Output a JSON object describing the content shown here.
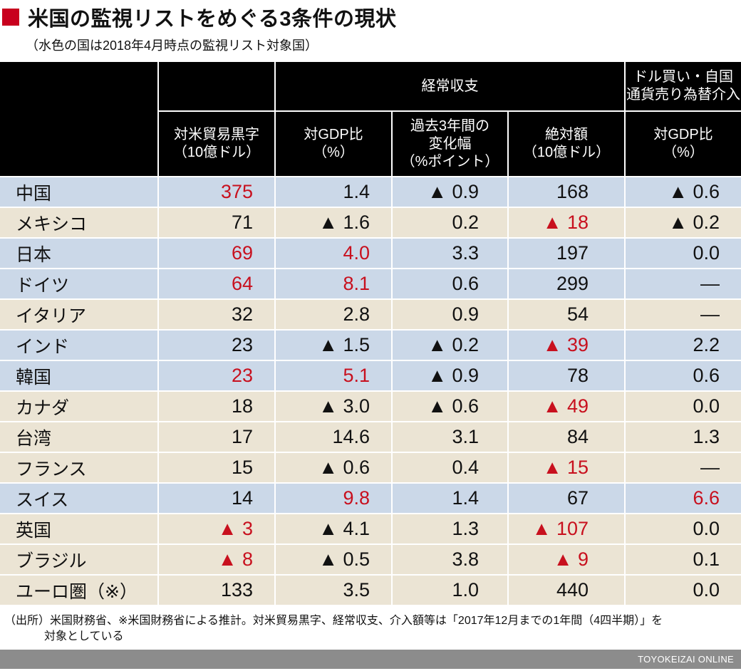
{
  "title": "米国の監視リストをめぐる3条件の現状",
  "subtitle": "（水色の国は2018年4月時点の監視リスト対象国）",
  "colors": {
    "accent": "#c8001e",
    "highlight_row": "#cbd8e8",
    "normal_row": "#ebe4d4",
    "red_value": "#c8101e",
    "header_bg": "#000000"
  },
  "header": {
    "group_current_account": "経常収支",
    "group_intervention_line1": "ドル買い・自国",
    "group_intervention_line2": "通貨売り為替介入",
    "col1_line1": "対米貿易黒字",
    "col1_line2": "（10億ドル）",
    "col2_line1": "対GDP比",
    "col2_line2": "（%）",
    "col3_line1": "過去3年間の",
    "col3_line2": "変化幅",
    "col3_line3": "（%ポイント）",
    "col4_line1": "絶対額",
    "col4_line2": "（10億ドル）",
    "col5_line1": "対GDP比",
    "col5_line2": "（%）"
  },
  "rows": [
    {
      "country": "中国",
      "watch": true,
      "trade": "375",
      "trade_red": true,
      "ca_gdp": "1.4",
      "ca_gdp_red": false,
      "ca_change": "▲ 0.9",
      "ca_abs": "168",
      "ca_abs_red": false,
      "fx": "▲ 0.6",
      "fx_red": false
    },
    {
      "country": "メキシコ",
      "watch": false,
      "trade": "71",
      "trade_red": false,
      "ca_gdp": "▲ 1.6",
      "ca_gdp_red": false,
      "ca_change": "0.2",
      "ca_abs": "▲ 18",
      "ca_abs_red": true,
      "fx": "▲ 0.2",
      "fx_red": false
    },
    {
      "country": "日本",
      "watch": true,
      "trade": "69",
      "trade_red": true,
      "ca_gdp": "4.0",
      "ca_gdp_red": true,
      "ca_change": "3.3",
      "ca_abs": "197",
      "ca_abs_red": false,
      "fx": "0.0",
      "fx_red": false
    },
    {
      "country": "ドイツ",
      "watch": true,
      "trade": "64",
      "trade_red": true,
      "ca_gdp": "8.1",
      "ca_gdp_red": true,
      "ca_change": "0.6",
      "ca_abs": "299",
      "ca_abs_red": false,
      "fx": "—",
      "fx_red": false
    },
    {
      "country": "イタリア",
      "watch": false,
      "trade": "32",
      "trade_red": false,
      "ca_gdp": "2.8",
      "ca_gdp_red": false,
      "ca_change": "0.9",
      "ca_abs": "54",
      "ca_abs_red": false,
      "fx": "—",
      "fx_red": false
    },
    {
      "country": "インド",
      "watch": true,
      "trade": "23",
      "trade_red": false,
      "ca_gdp": "▲ 1.5",
      "ca_gdp_red": false,
      "ca_change": "▲ 0.2",
      "ca_abs": "▲ 39",
      "ca_abs_red": true,
      "fx": "2.2",
      "fx_red": false
    },
    {
      "country": "韓国",
      "watch": true,
      "trade": "23",
      "trade_red": true,
      "ca_gdp": "5.1",
      "ca_gdp_red": true,
      "ca_change": "▲ 0.9",
      "ca_abs": "78",
      "ca_abs_red": false,
      "fx": "0.6",
      "fx_red": false
    },
    {
      "country": "カナダ",
      "watch": false,
      "trade": "18",
      "trade_red": false,
      "ca_gdp": "▲ 3.0",
      "ca_gdp_red": false,
      "ca_change": "▲ 0.6",
      "ca_abs": "▲ 49",
      "ca_abs_red": true,
      "fx": "0.0",
      "fx_red": false
    },
    {
      "country": "台湾",
      "watch": false,
      "trade": "17",
      "trade_red": false,
      "ca_gdp": "14.6",
      "ca_gdp_red": false,
      "ca_change": "3.1",
      "ca_abs": "84",
      "ca_abs_red": false,
      "fx": "1.3",
      "fx_red": false
    },
    {
      "country": "フランス",
      "watch": false,
      "trade": "15",
      "trade_red": false,
      "ca_gdp": "▲ 0.6",
      "ca_gdp_red": false,
      "ca_change": "0.4",
      "ca_abs": "▲ 15",
      "ca_abs_red": true,
      "fx": "—",
      "fx_red": false
    },
    {
      "country": "スイス",
      "watch": true,
      "trade": "14",
      "trade_red": false,
      "ca_gdp": "9.8",
      "ca_gdp_red": true,
      "ca_change": "1.4",
      "ca_abs": "67",
      "ca_abs_red": false,
      "fx": "6.6",
      "fx_red": true
    },
    {
      "country": "英国",
      "watch": false,
      "trade": "▲ 3",
      "trade_red": true,
      "ca_gdp": "▲ 4.1",
      "ca_gdp_red": false,
      "ca_change": "1.3",
      "ca_abs": "▲ 107",
      "ca_abs_red": true,
      "fx": "0.0",
      "fx_red": false
    },
    {
      "country": "ブラジル",
      "watch": false,
      "trade": "▲ 8",
      "trade_red": true,
      "ca_gdp": "▲ 0.5",
      "ca_gdp_red": false,
      "ca_change": "3.8",
      "ca_abs": "▲ 9",
      "ca_abs_red": true,
      "fx": "0.1",
      "fx_red": false
    },
    {
      "country": "ユーロ圏（※）",
      "watch": false,
      "trade": "133",
      "trade_red": false,
      "ca_gdp": "3.5",
      "ca_gdp_red": false,
      "ca_change": "1.0",
      "ca_abs": "440",
      "ca_abs_red": false,
      "fx": "0.0",
      "fx_red": false
    }
  ],
  "footnote": {
    "line1": "（出所）米国財務省、※米国財務省による推計。対米貿易黒字、経常収支、介入額等は「2017年12月までの1年間（4四半期）」を",
    "line2": "対象としている"
  },
  "brand": "TOYOKEIZAI ONLINE"
}
